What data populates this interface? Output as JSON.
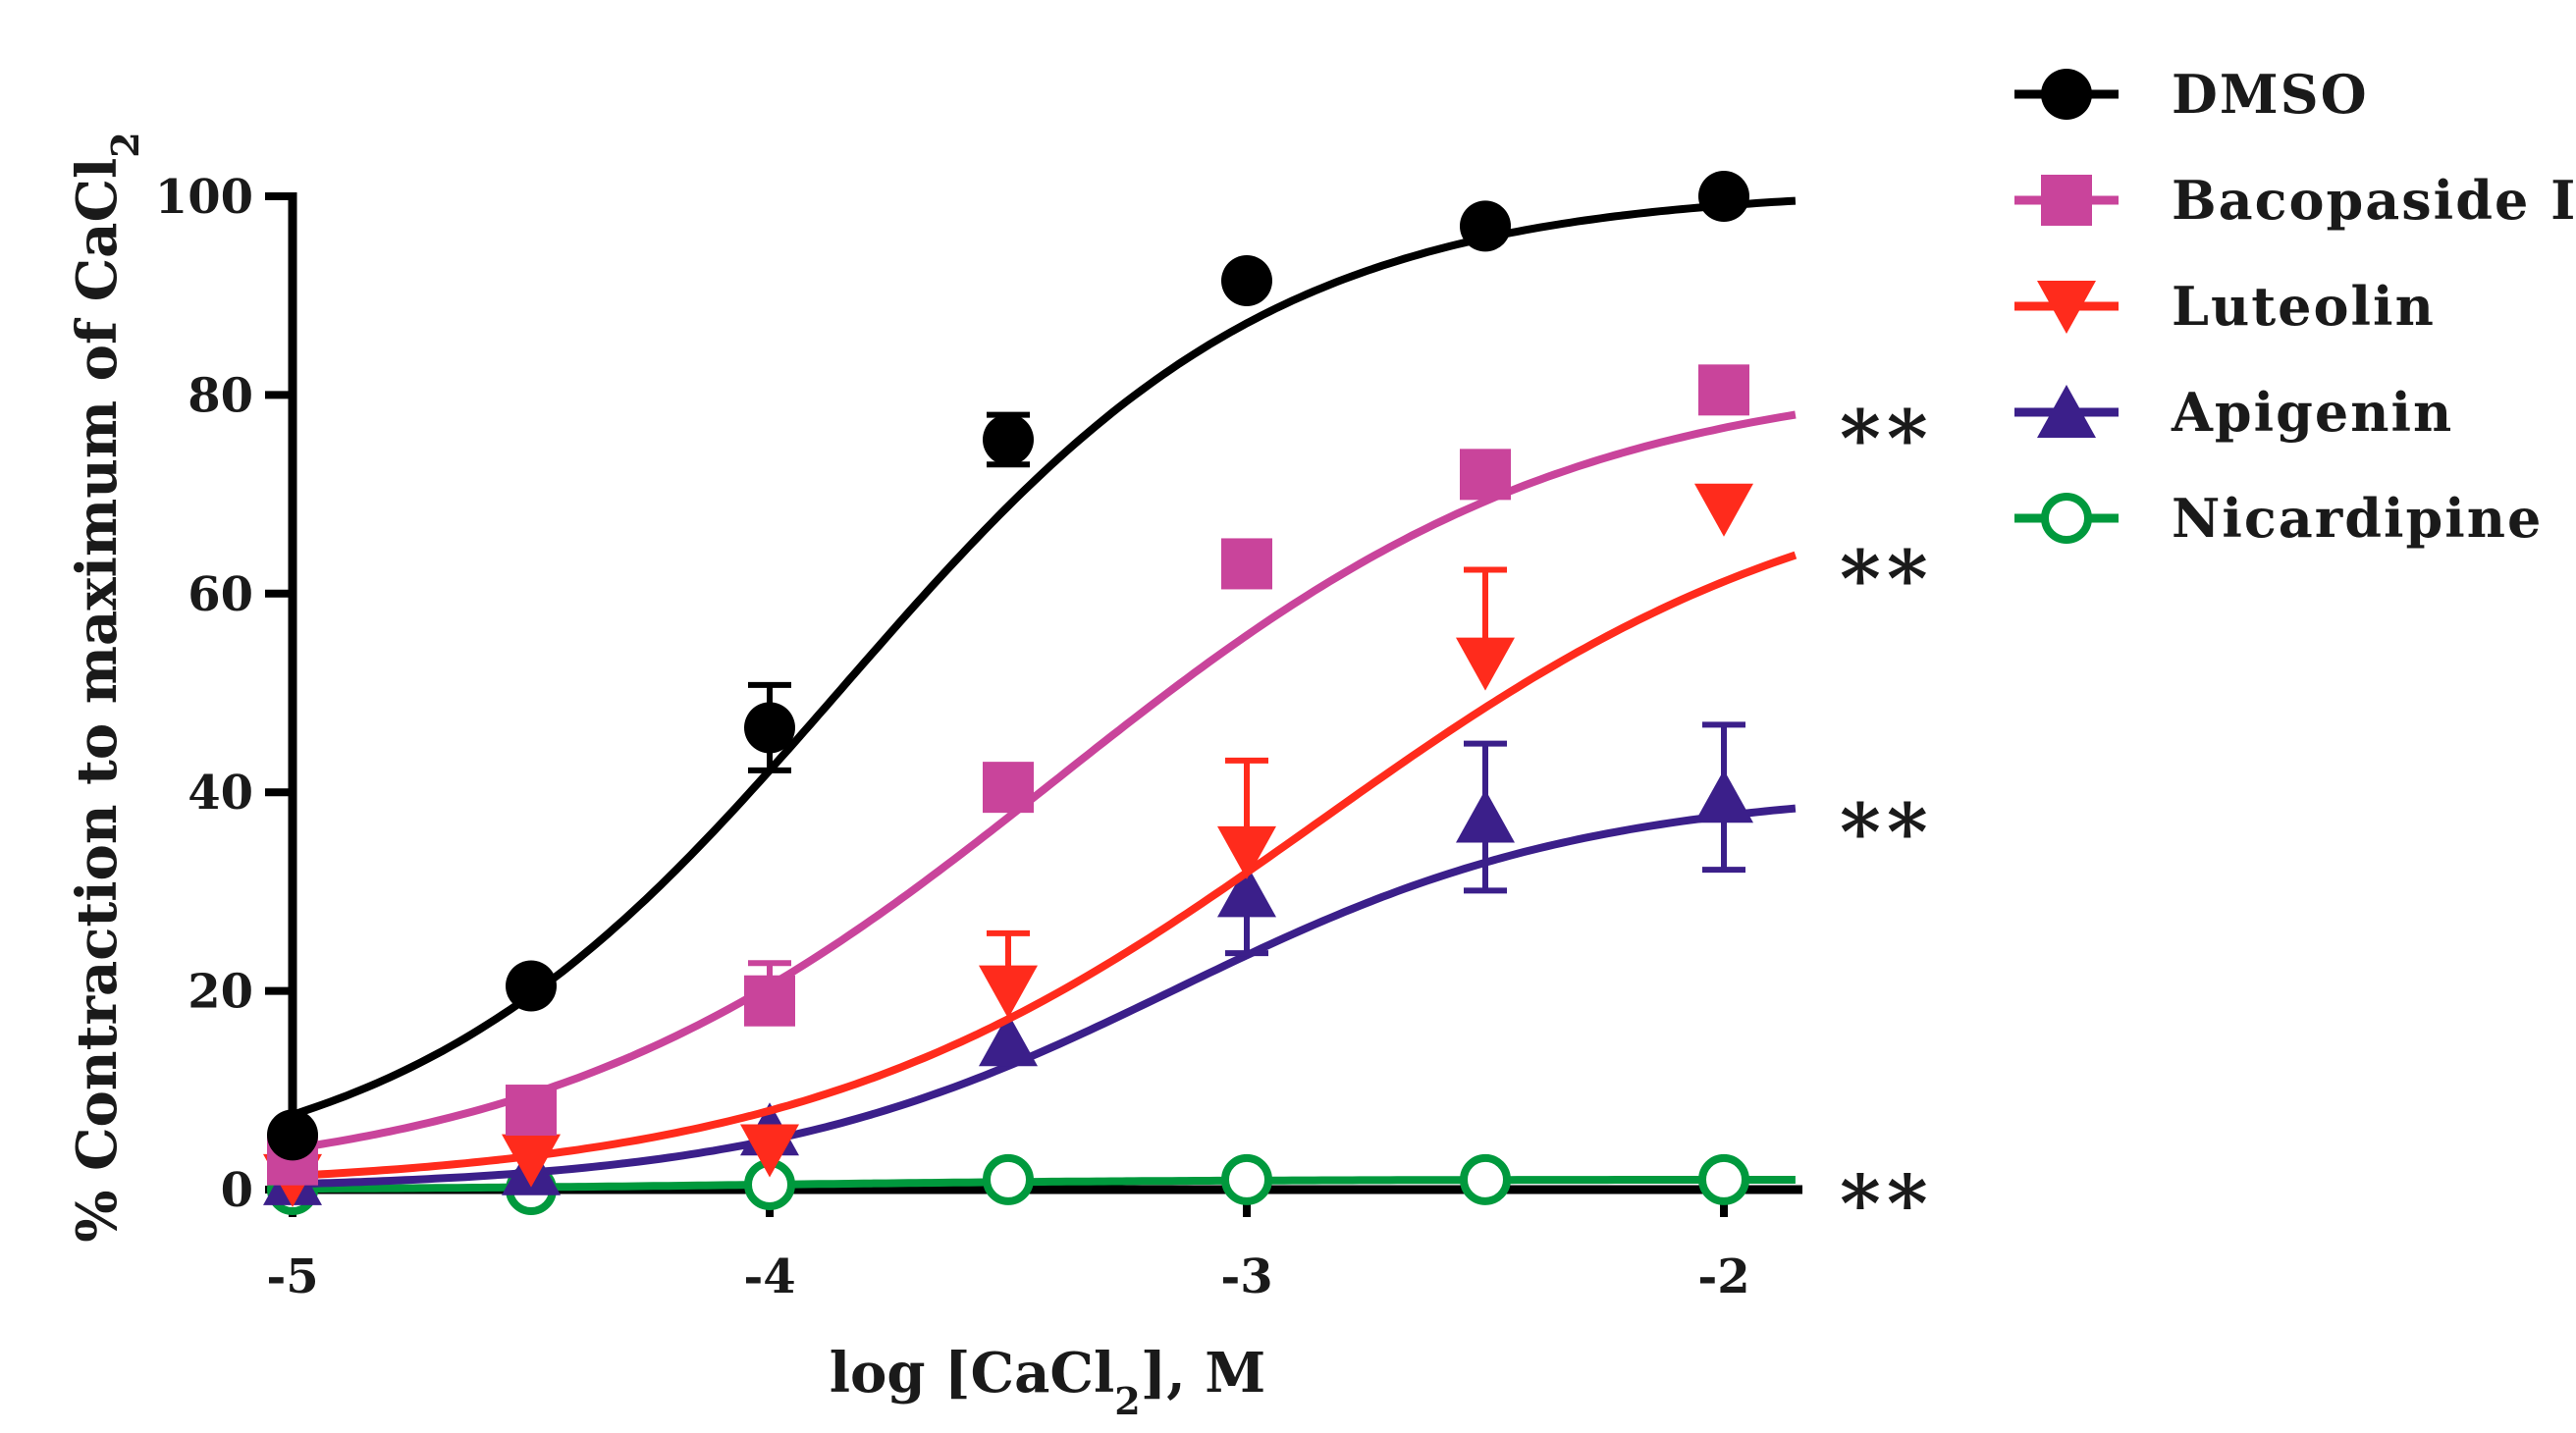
{
  "chart_data": {
    "type": "line",
    "xlabel": "log [CaCl2], M",
    "ylabel": "% Contraction to maximum of CaCl2",
    "xlim": [
      -5,
      -1.85
    ],
    "ylim": [
      0,
      100
    ],
    "x_ticks": [
      "-5",
      "-4",
      "-3",
      "-2"
    ],
    "y_ticks": [
      "0",
      "20",
      "40",
      "60",
      "80",
      "100"
    ],
    "legend_position": "top-right",
    "x": [
      -5,
      -4.5,
      -4,
      -3.5,
      -3,
      -2.5,
      -2
    ],
    "series": [
      {
        "name": "DMSO",
        "color": "#000000",
        "marker": "filled-circle",
        "values": [
          5.5,
          20.5,
          46.5,
          75.5,
          91.5,
          97,
          100
        ],
        "error": [
          0,
          0,
          4.3,
          2.5,
          0,
          0,
          0
        ],
        "fit": {
          "bottom": 0,
          "top": 100.8,
          "logec50": -3.85,
          "hill": 0.95
        }
      },
      {
        "name": "Bacopaside I",
        "color": "#c9449b",
        "marker": "filled-square",
        "values": [
          3,
          8,
          19,
          40.5,
          63,
          72,
          80.5
        ],
        "error": [
          0,
          0,
          3.8,
          0,
          0,
          0,
          0
        ],
        "fit": {
          "bottom": 0,
          "top": 82.5,
          "logec50": -3.4,
          "hill": 0.8
        },
        "significance": "**"
      },
      {
        "name": "Luteolin",
        "color": "#ff2b1c",
        "marker": "filled-triangle-down",
        "values": [
          1,
          3,
          4,
          20,
          34,
          53,
          68.5
        ],
        "error": [
          0,
          0,
          0,
          5.8,
          9.2,
          9.4,
          0
        ],
        "fit": {
          "bottom": 0,
          "top": 74,
          "logec50": -2.85,
          "hill": 0.8
        },
        "significance": "**"
      },
      {
        "name": "Apigenin",
        "color": "#3b1f8a",
        "marker": "filled-triangle-up",
        "values": [
          1,
          2,
          6,
          15,
          30,
          37.5,
          39.5
        ],
        "error": [
          0,
          0,
          0,
          0,
          6.2,
          7.4,
          7.3
        ],
        "fit": {
          "bottom": 0,
          "top": 40.3,
          "logec50": -3.15,
          "hill": 1.0
        },
        "significance": "**"
      },
      {
        "name": "Nicardipine",
        "color": "#00993d",
        "marker": "open-circle",
        "values": [
          0,
          0,
          0.5,
          1,
          1,
          1,
          1
        ],
        "error": [
          0,
          0,
          0,
          0,
          0,
          0,
          0
        ],
        "fit": {
          "bottom": 0,
          "top": 1,
          "logec50": -4,
          "hill": 1.0
        },
        "significance": "**"
      }
    ]
  }
}
